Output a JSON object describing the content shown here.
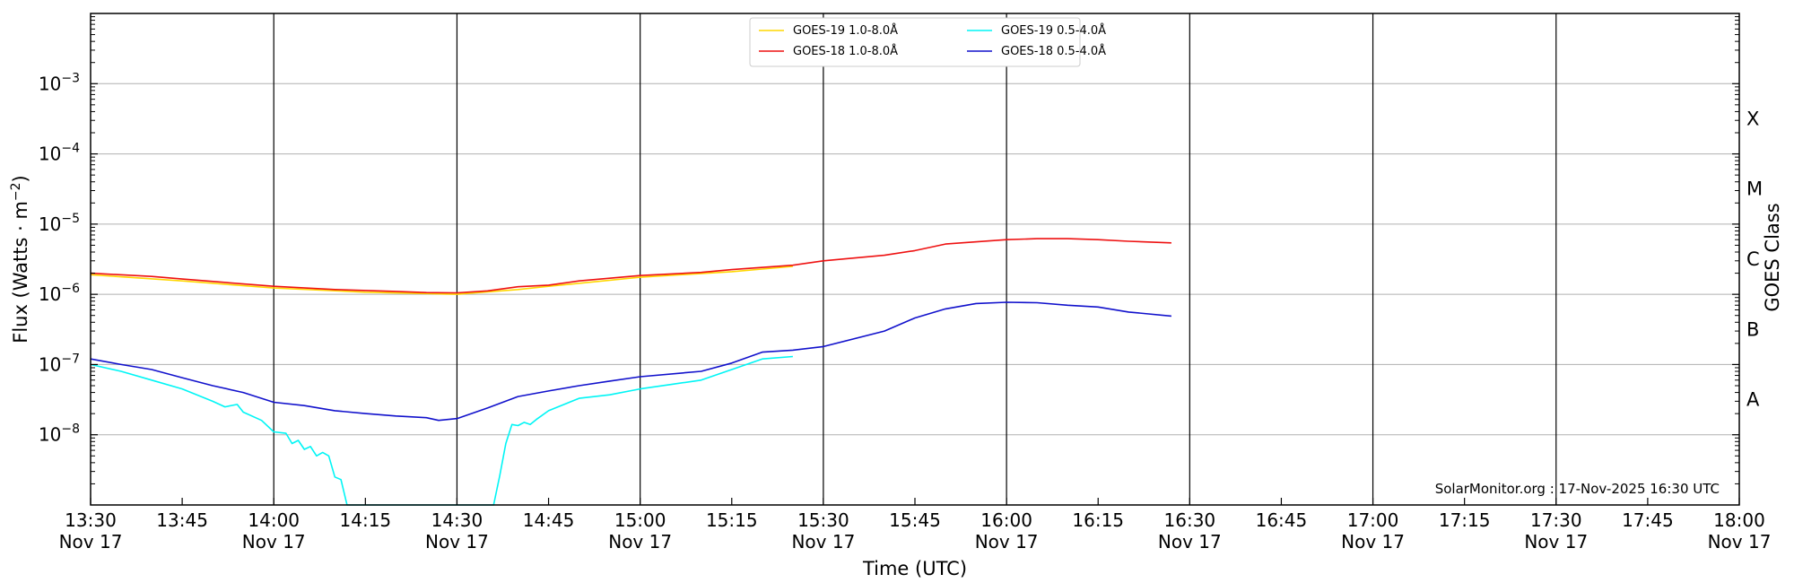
{
  "chart_data": {
    "type": "line",
    "xlabel": "Time (UTC)",
    "ylabel_main": "Flux (Watts · m",
    "ylabel_sup": "−2",
    "ylabel_close": ")",
    "right_axis_label": "GOES Class",
    "credit": "SolarMonitor.org : 17-Nov-2025 16:30 UTC",
    "y_scale": "log",
    "ylim": [
      1e-09,
      0.01
    ],
    "xlim": [
      "13:30",
      "18:00"
    ],
    "grid": true,
    "legend_position": "top-center",
    "x_ticks": [
      {
        "t": "13:30",
        "time": "13:30",
        "date": "Nov 17",
        "major": true
      },
      {
        "t": "13:45",
        "time": "13:45",
        "date": "",
        "major": false
      },
      {
        "t": "14:00",
        "time": "14:00",
        "date": "Nov 17",
        "major": true
      },
      {
        "t": "14:15",
        "time": "14:15",
        "date": "",
        "major": false
      },
      {
        "t": "14:30",
        "time": "14:30",
        "date": "Nov 17",
        "major": true
      },
      {
        "t": "14:45",
        "time": "14:45",
        "date": "",
        "major": false
      },
      {
        "t": "15:00",
        "time": "15:00",
        "date": "Nov 17",
        "major": true
      },
      {
        "t": "15:15",
        "time": "15:15",
        "date": "",
        "major": false
      },
      {
        "t": "15:30",
        "time": "15:30",
        "date": "Nov 17",
        "major": true
      },
      {
        "t": "15:45",
        "time": "15:45",
        "date": "",
        "major": false
      },
      {
        "t": "16:00",
        "time": "16:00",
        "date": "Nov 17",
        "major": true
      },
      {
        "t": "16:15",
        "time": "16:15",
        "date": "",
        "major": false
      },
      {
        "t": "16:30",
        "time": "16:30",
        "date": "Nov 17",
        "major": true
      },
      {
        "t": "16:45",
        "time": "16:45",
        "date": "",
        "major": false
      },
      {
        "t": "17:00",
        "time": "17:00",
        "date": "Nov 17",
        "major": true
      },
      {
        "t": "17:15",
        "time": "17:15",
        "date": "",
        "major": false
      },
      {
        "t": "17:30",
        "time": "17:30",
        "date": "Nov 17",
        "major": true
      },
      {
        "t": "17:45",
        "time": "17:45",
        "date": "",
        "major": false
      },
      {
        "t": "18:00",
        "time": "18:00",
        "date": "Nov 17",
        "major": true
      }
    ],
    "y_ticks": [
      {
        "exp": -8,
        "base": "10",
        "sup": "−8"
      },
      {
        "exp": -7,
        "base": "10",
        "sup": "−7"
      },
      {
        "exp": -6,
        "base": "10",
        "sup": "−6"
      },
      {
        "exp": -5,
        "base": "10",
        "sup": "−5"
      },
      {
        "exp": -4,
        "base": "10",
        "sup": "−4"
      },
      {
        "exp": -3,
        "base": "10",
        "sup": "−3"
      }
    ],
    "goes_classes": [
      {
        "label": "A",
        "exp": -7.5
      },
      {
        "label": "B",
        "exp": -6.5
      },
      {
        "label": "C",
        "exp": -5.5
      },
      {
        "label": "M",
        "exp": -4.5
      },
      {
        "label": "X",
        "exp": -3.5
      }
    ],
    "series": [
      {
        "name": "GOES-19 1.0-8.0Å",
        "color": "#ffd700",
        "points": [
          [
            "13:30",
            1.9e-06
          ],
          [
            "13:45",
            1.55e-06
          ],
          [
            "14:00",
            1.23e-06
          ],
          [
            "14:15",
            1.07e-06
          ],
          [
            "14:30",
            1e-06
          ],
          [
            "14:40",
            1.17e-06
          ],
          [
            "14:45",
            1.3e-06
          ],
          [
            "15:00",
            1.75e-06
          ],
          [
            "15:15",
            2.1e-06
          ],
          [
            "15:25",
            2.5e-06
          ]
        ]
      },
      {
        "name": "GOES-18 1.0-8.0Å",
        "color": "#ee1111",
        "points": [
          [
            "13:30",
            2e-06
          ],
          [
            "13:40",
            1.8e-06
          ],
          [
            "13:45",
            1.65e-06
          ],
          [
            "14:00",
            1.3e-06
          ],
          [
            "14:10",
            1.17e-06
          ],
          [
            "14:20",
            1.1e-06
          ],
          [
            "14:25",
            1.06e-06
          ],
          [
            "14:30",
            1.05e-06
          ],
          [
            "14:35",
            1.12e-06
          ],
          [
            "14:40",
            1.28e-06
          ],
          [
            "14:45",
            1.35e-06
          ],
          [
            "14:50",
            1.55e-06
          ],
          [
            "15:00",
            1.85e-06
          ],
          [
            "15:10",
            2.05e-06
          ],
          [
            "15:15",
            2.25e-06
          ],
          [
            "15:25",
            2.6e-06
          ],
          [
            "15:30",
            3e-06
          ],
          [
            "15:40",
            3.6e-06
          ],
          [
            "15:45",
            4.2e-06
          ],
          [
            "15:50",
            5.2e-06
          ],
          [
            "16:00",
            6e-06
          ],
          [
            "16:05",
            6.2e-06
          ],
          [
            "16:10",
            6.2e-06
          ],
          [
            "16:15",
            6e-06
          ],
          [
            "16:20",
            5.7e-06
          ],
          [
            "16:27",
            5.4e-06
          ]
        ]
      },
      {
        "name": "GOES-19 0.5-4.0Å",
        "color": "#00f5f5",
        "points": [
          [
            "13:30",
            1e-07
          ],
          [
            "13:35",
            8e-08
          ],
          [
            "13:40",
            6e-08
          ],
          [
            "13:45",
            4.5e-08
          ],
          [
            "13:50",
            3e-08
          ],
          [
            "13:52",
            2.5e-08
          ],
          [
            "13:54",
            2.7e-08
          ],
          [
            "13:55",
            2.1e-08
          ],
          [
            "13:58",
            1.6e-08
          ],
          [
            "14:00",
            1.1e-08
          ],
          [
            "14:02",
            1.05e-08
          ],
          [
            "14:03",
            7.5e-09
          ],
          [
            "14:04",
            8.3e-09
          ],
          [
            "14:05",
            6.2e-09
          ],
          [
            "14:06",
            6.8e-09
          ],
          [
            "14:07",
            5e-09
          ],
          [
            "14:08",
            5.6e-09
          ],
          [
            "14:09",
            5e-09
          ],
          [
            "14:10",
            2.5e-09
          ],
          [
            "14:11",
            2.3e-09
          ],
          [
            "14:12",
            1e-09
          ],
          [
            "14:36",
            1e-09
          ],
          [
            "14:37",
            2.6e-09
          ],
          [
            "14:38",
            7.5e-09
          ],
          [
            "14:39",
            1.4e-08
          ],
          [
            "14:40",
            1.35e-08
          ],
          [
            "14:41",
            1.5e-08
          ],
          [
            "14:42",
            1.4e-08
          ],
          [
            "14:43",
            1.65e-08
          ],
          [
            "14:45",
            2.2e-08
          ],
          [
            "14:50",
            3.3e-08
          ],
          [
            "14:55",
            3.7e-08
          ],
          [
            "15:00",
            4.5e-08
          ],
          [
            "15:05",
            5.2e-08
          ],
          [
            "15:10",
            6e-08
          ],
          [
            "15:15",
            8.5e-08
          ],
          [
            "15:20",
            1.2e-07
          ],
          [
            "15:25",
            1.3e-07
          ]
        ]
      },
      {
        "name": "GOES-18 0.5-4.0Å",
        "color": "#1111cc",
        "points": [
          [
            "13:30",
            1.2e-07
          ],
          [
            "13:35",
            1e-07
          ],
          [
            "13:40",
            8.5e-08
          ],
          [
            "13:45",
            6.5e-08
          ],
          [
            "13:50",
            5e-08
          ],
          [
            "13:55",
            4e-08
          ],
          [
            "14:00",
            2.9e-08
          ],
          [
            "14:05",
            2.6e-08
          ],
          [
            "14:10",
            2.2e-08
          ],
          [
            "14:15",
            2e-08
          ],
          [
            "14:20",
            1.85e-08
          ],
          [
            "14:25",
            1.75e-08
          ],
          [
            "14:27",
            1.6e-08
          ],
          [
            "14:30",
            1.7e-08
          ],
          [
            "14:35",
            2.4e-08
          ],
          [
            "14:40",
            3.5e-08
          ],
          [
            "14:45",
            4.2e-08
          ],
          [
            "14:50",
            5e-08
          ],
          [
            "14:55",
            5.8e-08
          ],
          [
            "15:00",
            6.7e-08
          ],
          [
            "15:10",
            8e-08
          ],
          [
            "15:15",
            1.05e-07
          ],
          [
            "15:20",
            1.5e-07
          ],
          [
            "15:25",
            1.6e-07
          ],
          [
            "15:30",
            1.8e-07
          ],
          [
            "15:40",
            3e-07
          ],
          [
            "15:45",
            4.6e-07
          ],
          [
            "15:50",
            6.2e-07
          ],
          [
            "15:55",
            7.4e-07
          ],
          [
            "16:00",
            7.7e-07
          ],
          [
            "16:05",
            7.6e-07
          ],
          [
            "16:10",
            7e-07
          ],
          [
            "16:15",
            6.6e-07
          ],
          [
            "16:20",
            5.6e-07
          ],
          [
            "16:27",
            4.9e-07
          ]
        ]
      }
    ]
  }
}
